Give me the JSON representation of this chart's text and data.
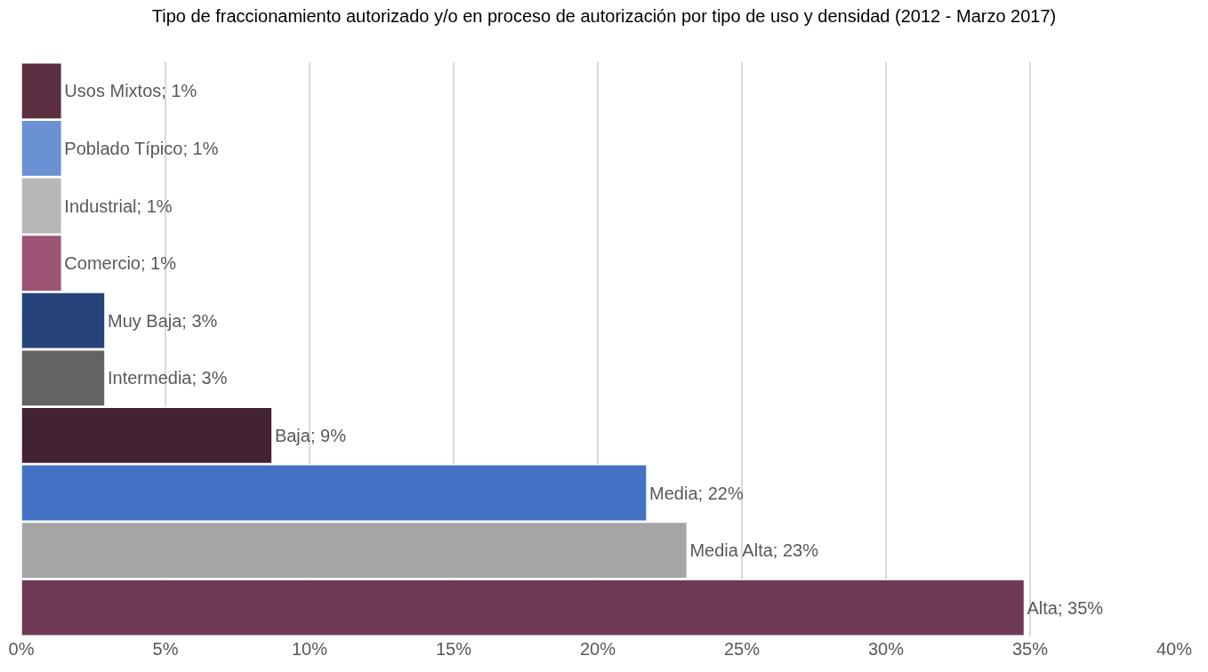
{
  "chart_data": {
    "type": "bar",
    "orientation": "horizontal",
    "title": "Tipo de fraccionamiento autorizado y/o en proceso de autorización por tipo de uso y densidad (2012 - Marzo 2017)",
    "categories": [
      null,
      null,
      null,
      null,
      null,
      null,
      null,
      null,
      null,
      null
    ],
    "values": [
      1.4,
      1.4,
      1.4,
      1.4,
      2.9,
      2.9,
      8.7,
      21.7,
      23.1,
      34.8
    ],
    "value_labels": [
      "Usos Mixtos; 1%",
      "Poblado Típico; 1%",
      "Industrial; 1%",
      "Comercio; 1%",
      "Muy Baja; 3%",
      "Intermedia; 3%",
      "Baja; 9%",
      "Media; 22%",
      "Media Alta; 23%",
      "Alta; 35%"
    ],
    "colors": [
      "#5c2e42",
      "#6a91d4",
      "#b7b7b7",
      "#9c5474",
      "#26447a",
      "#636363",
      "#432234",
      "#4472c4",
      "#a5a5a5",
      "#6f3a55"
    ],
    "xlim": [
      0,
      40
    ],
    "xticks": [
      {
        "value": 0,
        "label": "0%"
      },
      {
        "value": 5,
        "label": "5%"
      },
      {
        "value": 10,
        "label": "10%"
      },
      {
        "value": 15,
        "label": "15%"
      },
      {
        "value": 20,
        "label": "20%"
      },
      {
        "value": 25,
        "label": "25%"
      },
      {
        "value": 30,
        "label": "30%"
      },
      {
        "value": 35,
        "label": "35%"
      },
      {
        "value": 40,
        "label": "40%"
      }
    ],
    "grid": "x",
    "tick_labels": "x"
  }
}
